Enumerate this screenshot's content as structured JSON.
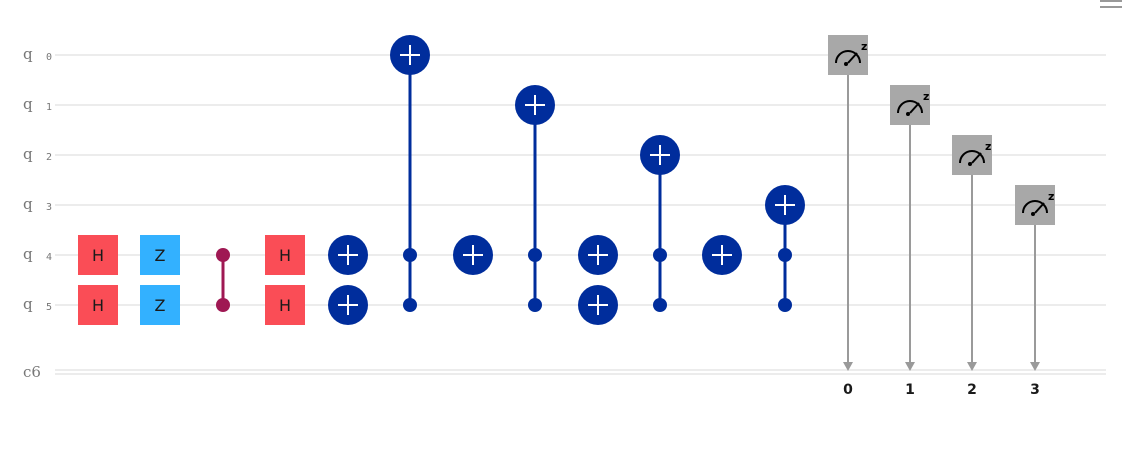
{
  "menu_icon": "hamburger-menu-icon",
  "colors": {
    "h_gate": "#fa4d56",
    "z_gate": "#33b1ff",
    "cz_control": "#9f1853",
    "cnot": "#002d9c",
    "measure": "#a8a8a8",
    "wire": "#e6e6e6",
    "classical_arrow": "#9a9a9a"
  },
  "qubits": [
    {
      "label": "q",
      "index": "0"
    },
    {
      "label": "q",
      "index": "1"
    },
    {
      "label": "q",
      "index": "2"
    },
    {
      "label": "q",
      "index": "3"
    },
    {
      "label": "q",
      "index": "4"
    },
    {
      "label": "q",
      "index": "5"
    }
  ],
  "classical_register": {
    "label": "c6"
  },
  "gates": [
    {
      "type": "single",
      "name": "H",
      "qubit": 4,
      "color": "#fa4d56"
    },
    {
      "type": "single",
      "name": "H",
      "qubit": 5,
      "color": "#fa4d56"
    },
    {
      "type": "single",
      "name": "Z",
      "qubit": 4,
      "color": "#33b1ff"
    },
    {
      "type": "single",
      "name": "Z",
      "qubit": 5,
      "color": "#33b1ff"
    },
    {
      "type": "cz",
      "qubits": [
        4,
        5
      ]
    },
    {
      "type": "single",
      "name": "H",
      "qubit": 4,
      "color": "#fa4d56"
    },
    {
      "type": "single",
      "name": "H",
      "qubit": 5,
      "color": "#fa4d56"
    },
    {
      "type": "x",
      "qubit": 4
    },
    {
      "type": "x",
      "qubit": 5
    },
    {
      "type": "ccx",
      "controls": [
        4,
        5
      ],
      "target": 0
    },
    {
      "type": "x",
      "qubit": 4
    },
    {
      "type": "ccx",
      "controls": [
        4,
        5
      ],
      "target": 1
    },
    {
      "type": "x",
      "qubit": 4
    },
    {
      "type": "x",
      "qubit": 5
    },
    {
      "type": "ccx",
      "controls": [
        4,
        5
      ],
      "target": 2
    },
    {
      "type": "x",
      "qubit": 4
    },
    {
      "type": "ccx",
      "controls": [
        4,
        5
      ],
      "target": 3
    },
    {
      "type": "measure",
      "qubit": 0,
      "bit": "0",
      "basis": "z"
    },
    {
      "type": "measure",
      "qubit": 1,
      "bit": "1",
      "basis": "z"
    },
    {
      "type": "measure",
      "qubit": 2,
      "bit": "2",
      "basis": "z"
    },
    {
      "type": "measure",
      "qubit": 3,
      "bit": "3",
      "basis": "z"
    }
  ]
}
